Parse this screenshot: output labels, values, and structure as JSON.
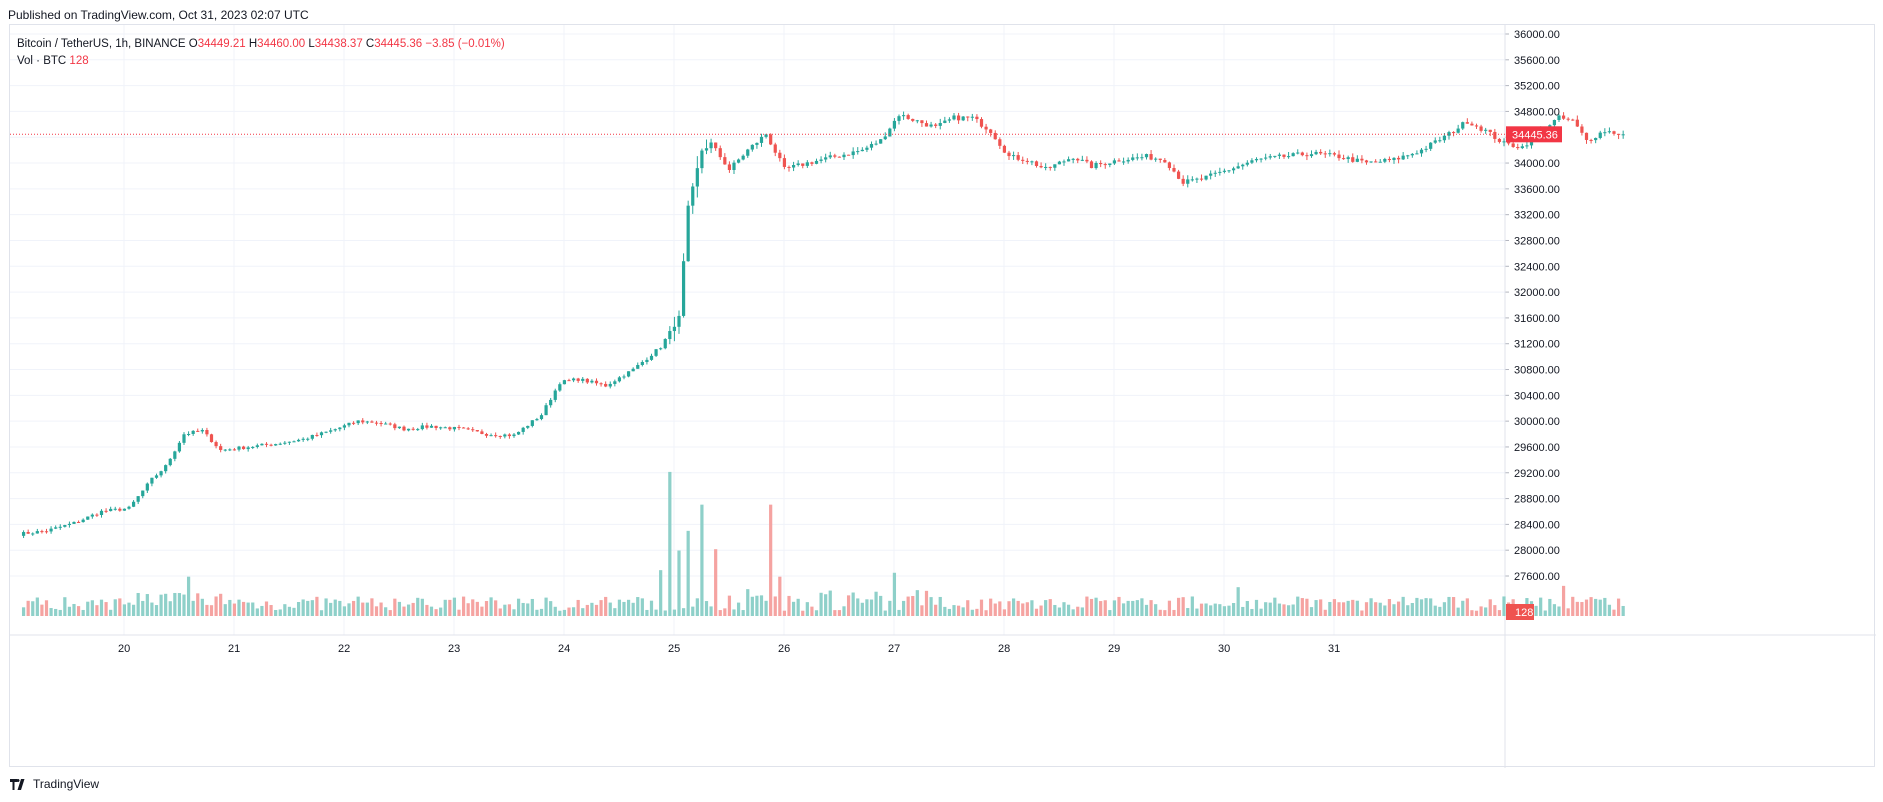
{
  "header": {
    "published": "Published on TradingView.com, Oct 31, 2023 02:07 UTC"
  },
  "legend": {
    "symbol": "Bitcoin / TetherUS, 1h, BINANCE",
    "o_label": "O",
    "o_value": "34449.21",
    "h_label": "H",
    "h_value": "34460.00",
    "l_label": "L",
    "l_value": "34438.37",
    "c_label": "C",
    "c_value": "34445.36",
    "change": "−3.85 (−0.01%)",
    "vol_label": "Vol · BTC",
    "vol_value": "128"
  },
  "footer": {
    "brand": "TradingView"
  },
  "colors": {
    "up": "#26a69a",
    "down": "#ef5350",
    "vol_up": "#8ed0c9",
    "vol_down": "#f5a3a1",
    "last_price": "#f23645",
    "grid": "#f0f3fa"
  },
  "chart_data": {
    "type": "candlestick",
    "symbol": "BTCUSDT",
    "interval": "1h",
    "ylim": [
      27400,
      36200
    ],
    "y_ticks": [
      "27600.00",
      "28000.00",
      "28400.00",
      "28800.00",
      "29200.00",
      "29600.00",
      "30000.00",
      "30400.00",
      "30800.00",
      "31200.00",
      "31600.00",
      "32000.00",
      "32400.00",
      "32800.00",
      "33200.00",
      "33600.00",
      "34000.00",
      "34400.00",
      "34800.00",
      "35200.00",
      "35600.00",
      "36000.00"
    ],
    "x_ticks": [
      "20",
      "21",
      "22",
      "23",
      "24",
      "25",
      "26",
      "27",
      "28",
      "29",
      "30",
      "31"
    ],
    "last_price": "34445.36",
    "last_volume": "128",
    "anchors": [
      {
        "t": 0,
        "p": 28250
      },
      {
        "t": 6,
        "p": 28300
      },
      {
        "t": 12,
        "p": 28420
      },
      {
        "t": 18,
        "p": 28600
      },
      {
        "t": 24,
        "p": 28650
      },
      {
        "t": 29,
        "p": 29100
      },
      {
        "t": 32,
        "p": 29300
      },
      {
        "t": 36,
        "p": 29800
      },
      {
        "t": 40,
        "p": 29850
      },
      {
        "t": 44,
        "p": 29550
      },
      {
        "t": 50,
        "p": 29600
      },
      {
        "t": 56,
        "p": 29650
      },
      {
        "t": 62,
        "p": 29720
      },
      {
        "t": 68,
        "p": 29850
      },
      {
        "t": 74,
        "p": 30000
      },
      {
        "t": 78,
        "p": 29980
      },
      {
        "t": 84,
        "p": 29880
      },
      {
        "t": 90,
        "p": 29920
      },
      {
        "t": 96,
        "p": 29880
      },
      {
        "t": 102,
        "p": 29800
      },
      {
        "t": 108,
        "p": 29780
      },
      {
        "t": 114,
        "p": 30100
      },
      {
        "t": 118,
        "p": 30600
      },
      {
        "t": 122,
        "p": 30650
      },
      {
        "t": 128,
        "p": 30550
      },
      {
        "t": 134,
        "p": 30800
      },
      {
        "t": 140,
        "p": 31150
      },
      {
        "t": 144,
        "p": 31600
      },
      {
        "t": 146,
        "p": 33300
      },
      {
        "t": 149,
        "p": 34200
      },
      {
        "t": 151,
        "p": 34300
      },
      {
        "t": 155,
        "p": 33900
      },
      {
        "t": 159,
        "p": 34200
      },
      {
        "t": 163,
        "p": 34450
      },
      {
        "t": 167,
        "p": 33900
      },
      {
        "t": 172,
        "p": 34000
      },
      {
        "t": 178,
        "p": 34100
      },
      {
        "t": 184,
        "p": 34200
      },
      {
        "t": 188,
        "p": 34350
      },
      {
        "t": 192,
        "p": 34750
      },
      {
        "t": 196,
        "p": 34650
      },
      {
        "t": 200,
        "p": 34550
      },
      {
        "t": 204,
        "p": 34700
      },
      {
        "t": 208,
        "p": 34700
      },
      {
        "t": 212,
        "p": 34500
      },
      {
        "t": 216,
        "p": 34100
      },
      {
        "t": 220,
        "p": 34050
      },
      {
        "t": 224,
        "p": 33900
      },
      {
        "t": 230,
        "p": 34100
      },
      {
        "t": 234,
        "p": 33950
      },
      {
        "t": 240,
        "p": 34050
      },
      {
        "t": 246,
        "p": 34100
      },
      {
        "t": 250,
        "p": 34050
      },
      {
        "t": 254,
        "p": 33700
      },
      {
        "t": 258,
        "p": 33750
      },
      {
        "t": 264,
        "p": 33900
      },
      {
        "t": 270,
        "p": 34050
      },
      {
        "t": 276,
        "p": 34100
      },
      {
        "t": 282,
        "p": 34150
      },
      {
        "t": 288,
        "p": 34100
      },
      {
        "t": 294,
        "p": 34000
      },
      {
        "t": 300,
        "p": 34050
      },
      {
        "t": 306,
        "p": 34200
      },
      {
        "t": 312,
        "p": 34450
      },
      {
        "t": 316,
        "p": 34650
      },
      {
        "t": 320,
        "p": 34500
      },
      {
        "t": 324,
        "p": 34300
      },
      {
        "t": 328,
        "p": 34250
      },
      {
        "t": 332,
        "p": 34500
      },
      {
        "t": 336,
        "p": 34700
      },
      {
        "t": 339,
        "p": 34650
      },
      {
        "t": 342,
        "p": 34350
      },
      {
        "t": 346,
        "p": 34500
      },
      {
        "t": 350,
        "p": 34445
      }
    ],
    "volume_peaks": [
      {
        "t": 37,
        "v": 300
      },
      {
        "t": 140,
        "v": 350
      },
      {
        "t": 142,
        "v": 1100
      },
      {
        "t": 144,
        "v": 500
      },
      {
        "t": 146,
        "v": 650
      },
      {
        "t": 149,
        "v": 850
      },
      {
        "t": 152,
        "v": 510
      },
      {
        "t": 164,
        "v": 850
      },
      {
        "t": 166,
        "v": 300
      },
      {
        "t": 191,
        "v": 330
      },
      {
        "t": 266,
        "v": 220
      },
      {
        "t": 337,
        "v": 230
      }
    ]
  }
}
